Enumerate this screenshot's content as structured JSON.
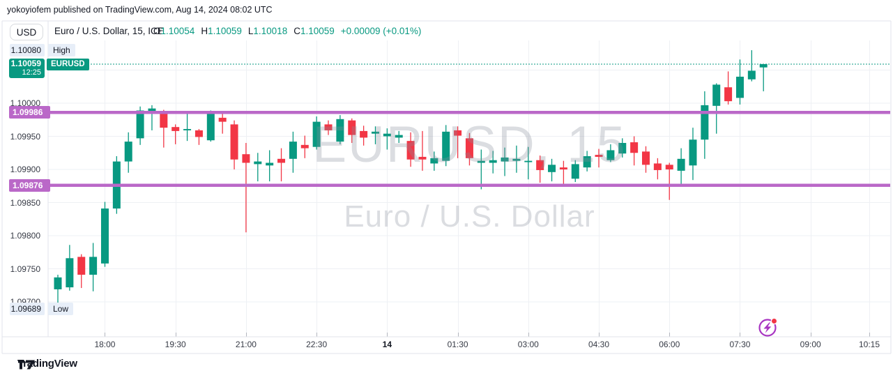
{
  "published_bar": {
    "text": "yokoyiofem published on TradingView.com, Aug 14, 2024 08:02 UTC"
  },
  "symbol_bar": {
    "currency_button": "USD",
    "title": "Euro / U.S. Dollar, 15, ICE",
    "ohlc_items": [
      {
        "label": "O",
        "value": "1.10054"
      },
      {
        "label": "H",
        "value": "1.10059"
      },
      {
        "label": "L",
        "value": "1.10018"
      },
      {
        "label": "C",
        "value": "1.10059"
      }
    ],
    "change": "+0.00009 (+0.01%)"
  },
  "watermark": {
    "line1": "EURUSD, 15",
    "line2": "Euro / U.S. Dollar"
  },
  "overlays": {
    "high_label": {
      "price_text": "1.10080",
      "tag": "High",
      "price": 1.1008
    },
    "low_label": {
      "price_text": "1.09689",
      "tag": "Low",
      "price": 1.09689
    },
    "current": {
      "price_text": "1.10059",
      "countdown": "12:25",
      "symbol_tag": "EURUSD",
      "price": 1.10059
    },
    "levels": [
      {
        "text": "1.09986",
        "price": 1.09986
      },
      {
        "text": "1.09876",
        "price": 1.09876
      }
    ]
  },
  "price_axis": {
    "labels": [
      {
        "text": "1.10000",
        "price": 1.1
      },
      {
        "text": "1.09950",
        "price": 1.0995
      },
      {
        "text": "1.09900",
        "price": 1.099
      },
      {
        "text": "1.09850",
        "price": 1.0985
      },
      {
        "text": "1.09800",
        "price": 1.098
      },
      {
        "text": "1.09750",
        "price": 1.0975
      },
      {
        "text": "1.09700",
        "price": 1.097
      }
    ],
    "unlabeled_gridlines": [
      1.1005
    ]
  },
  "time_axis": {
    "labels": [
      {
        "text": "18:00",
        "minutes": 0,
        "emphasis": false
      },
      {
        "text": "19:30",
        "minutes": 90,
        "emphasis": false
      },
      {
        "text": "21:00",
        "minutes": 180,
        "emphasis": false
      },
      {
        "text": "22:30",
        "minutes": 270,
        "emphasis": false
      },
      {
        "text": "14",
        "minutes": 360,
        "emphasis": true
      },
      {
        "text": "01:30",
        "minutes": 450,
        "emphasis": false
      },
      {
        "text": "03:00",
        "minutes": 540,
        "emphasis": false
      },
      {
        "text": "04:30",
        "minutes": 630,
        "emphasis": false
      },
      {
        "text": "06:00",
        "minutes": 720,
        "emphasis": false
      },
      {
        "text": "07:30",
        "minutes": 810,
        "emphasis": false
      },
      {
        "text": "09:00",
        "minutes": 900,
        "emphasis": false
      },
      {
        "text": "10:15",
        "minutes": 975,
        "emphasis": false
      }
    ]
  },
  "footer": {
    "brand": "TradingView"
  },
  "icons": {
    "flash": "flash-lightning-notification"
  },
  "colors": {
    "up": "#089981",
    "down": "#f23645",
    "level": "#ba68c8",
    "grid": "#eef0f4",
    "border": "#e0e3eb",
    "tick": "#b2b5be",
    "axis_text": "#363a45",
    "flash_ring": "#a835c2",
    "flash_dot": "#f23645"
  },
  "chart_data": {
    "type": "candlestick",
    "symbol": "EURUSD",
    "interval_minutes": 15,
    "session_high": 1.1008,
    "session_low": 1.09689,
    "last_price": 1.10059,
    "horizontal_levels": [
      1.09986,
      1.09876
    ],
    "ylim": [
      1.0965,
      1.1011
    ],
    "candles": [
      {
        "t": "17:00",
        "o": 1.09719,
        "h": 1.09741,
        "l": 1.0969,
        "c": 1.09737
      },
      {
        "t": "17:15",
        "o": 1.09722,
        "h": 1.09786,
        "l": 1.09717,
        "c": 1.09766
      },
      {
        "t": "17:30",
        "o": 1.09768,
        "h": 1.09772,
        "l": 1.09721,
        "c": 1.09741
      },
      {
        "t": "17:45",
        "o": 1.09741,
        "h": 1.09789,
        "l": 1.09716,
        "c": 1.09768
      },
      {
        "t": "18:00",
        "o": 1.09758,
        "h": 1.09851,
        "l": 1.09753,
        "c": 1.09841
      },
      {
        "t": "18:15",
        "o": 1.09841,
        "h": 1.0992,
        "l": 1.09833,
        "c": 1.09912
      },
      {
        "t": "18:30",
        "o": 1.09912,
        "h": 1.09956,
        "l": 1.09895,
        "c": 1.09942
      },
      {
        "t": "18:45",
        "o": 1.09947,
        "h": 1.09995,
        "l": 1.09937,
        "c": 1.09989
      },
      {
        "t": "19:00",
        "o": 1.09986,
        "h": 1.09997,
        "l": 1.09959,
        "c": 1.09992
      },
      {
        "t": "19:15",
        "o": 1.09988,
        "h": 1.0999,
        "l": 1.09933,
        "c": 1.09963
      },
      {
        "t": "19:30",
        "o": 1.09964,
        "h": 1.09968,
        "l": 1.09938,
        "c": 1.09958
      },
      {
        "t": "19:45",
        "o": 1.09959,
        "h": 1.09985,
        "l": 1.09943,
        "c": 1.09961
      },
      {
        "t": "20:00",
        "o": 1.09959,
        "h": 1.09961,
        "l": 1.09937,
        "c": 1.09949
      },
      {
        "t": "20:15",
        "o": 1.09944,
        "h": 1.09989,
        "l": 1.09942,
        "c": 1.09984
      },
      {
        "t": "20:30",
        "o": 1.09978,
        "h": 1.09986,
        "l": 1.09954,
        "c": 1.09972
      },
      {
        "t": "20:45",
        "o": 1.09968,
        "h": 1.09974,
        "l": 1.099,
        "c": 1.09915
      },
      {
        "t": "21:00",
        "o": 1.09923,
        "h": 1.0994,
        "l": 1.09805,
        "c": 1.0991
      },
      {
        "t": "21:15",
        "o": 1.09908,
        "h": 1.09925,
        "l": 1.09882,
        "c": 1.09912
      },
      {
        "t": "21:30",
        "o": 1.09906,
        "h": 1.09929,
        "l": 1.09882,
        "c": 1.0991
      },
      {
        "t": "21:45",
        "o": 1.09916,
        "h": 1.09932,
        "l": 1.09882,
        "c": 1.0991
      },
      {
        "t": "22:00",
        "o": 1.09916,
        "h": 1.09957,
        "l": 1.09895,
        "c": 1.09942
      },
      {
        "t": "22:15",
        "o": 1.09937,
        "h": 1.09951,
        "l": 1.09917,
        "c": 1.09932
      },
      {
        "t": "22:30",
        "o": 1.09934,
        "h": 1.0998,
        "l": 1.0993,
        "c": 1.09972
      },
      {
        "t": "22:45",
        "o": 1.09968,
        "h": 1.09974,
        "l": 1.09952,
        "c": 1.09959
      },
      {
        "t": "23:00",
        "o": 1.09942,
        "h": 1.09982,
        "l": 1.09938,
        "c": 1.09976
      },
      {
        "t": "23:15",
        "o": 1.09974,
        "h": 1.09977,
        "l": 1.0994,
        "c": 1.09952
      },
      {
        "t": "23:30",
        "o": 1.09958,
        "h": 1.09966,
        "l": 1.09936,
        "c": 1.09948
      },
      {
        "t": "23:45",
        "o": 1.09954,
        "h": 1.09965,
        "l": 1.09938,
        "c": 1.09957
      },
      {
        "t": "00:00",
        "o": 1.0995,
        "h": 1.09962,
        "l": 1.0993,
        "c": 1.09954
      },
      {
        "t": "00:15",
        "o": 1.09948,
        "h": 1.09958,
        "l": 1.0994,
        "c": 1.09952
      },
      {
        "t": "00:30",
        "o": 1.09943,
        "h": 1.09956,
        "l": 1.09904,
        "c": 1.09915
      },
      {
        "t": "00:45",
        "o": 1.09919,
        "h": 1.09958,
        "l": 1.09898,
        "c": 1.09915
      },
      {
        "t": "01:00",
        "o": 1.09909,
        "h": 1.09927,
        "l": 1.09898,
        "c": 1.09917
      },
      {
        "t": "01:15",
        "o": 1.09913,
        "h": 1.09967,
        "l": 1.09905,
        "c": 1.09957
      },
      {
        "t": "01:30",
        "o": 1.09959,
        "h": 1.09965,
        "l": 1.09917,
        "c": 1.09951
      },
      {
        "t": "01:45",
        "o": 1.09947,
        "h": 1.09955,
        "l": 1.09906,
        "c": 1.09917
      },
      {
        "t": "02:00",
        "o": 1.0991,
        "h": 1.0993,
        "l": 1.0987,
        "c": 1.09913
      },
      {
        "t": "02:15",
        "o": 1.0991,
        "h": 1.09928,
        "l": 1.09894,
        "c": 1.09914
      },
      {
        "t": "02:30",
        "o": 1.09912,
        "h": 1.09933,
        "l": 1.0989,
        "c": 1.09918
      },
      {
        "t": "02:45",
        "o": 1.09913,
        "h": 1.09936,
        "l": 1.09895,
        "c": 1.09916
      },
      {
        "t": "03:00",
        "o": 1.09911,
        "h": 1.09934,
        "l": 1.09885,
        "c": 1.09913
      },
      {
        "t": "03:15",
        "o": 1.09914,
        "h": 1.09921,
        "l": 1.0988,
        "c": 1.09899
      },
      {
        "t": "03:30",
        "o": 1.09896,
        "h": 1.09916,
        "l": 1.09882,
        "c": 1.09907
      },
      {
        "t": "03:45",
        "o": 1.09903,
        "h": 1.09913,
        "l": 1.09876,
        "c": 1.099
      },
      {
        "t": "04:00",
        "o": 1.09886,
        "h": 1.09914,
        "l": 1.09881,
        "c": 1.09908
      },
      {
        "t": "04:15",
        "o": 1.09903,
        "h": 1.09928,
        "l": 1.09897,
        "c": 1.0992
      },
      {
        "t": "04:30",
        "o": 1.09922,
        "h": 1.09931,
        "l": 1.09903,
        "c": 1.09919
      },
      {
        "t": "04:45",
        "o": 1.09914,
        "h": 1.09938,
        "l": 1.09911,
        "c": 1.09929
      },
      {
        "t": "05:00",
        "o": 1.09924,
        "h": 1.09947,
        "l": 1.09918,
        "c": 1.0994
      },
      {
        "t": "05:15",
        "o": 1.09941,
        "h": 1.0995,
        "l": 1.09906,
        "c": 1.09925
      },
      {
        "t": "05:30",
        "o": 1.09927,
        "h": 1.09935,
        "l": 1.09895,
        "c": 1.09907
      },
      {
        "t": "05:45",
        "o": 1.09909,
        "h": 1.09917,
        "l": 1.09885,
        "c": 1.09899
      },
      {
        "t": "06:00",
        "o": 1.09907,
        "h": 1.0991,
        "l": 1.09854,
        "c": 1.099
      },
      {
        "t": "06:15",
        "o": 1.09898,
        "h": 1.09932,
        "l": 1.09876,
        "c": 1.09916
      },
      {
        "t": "06:30",
        "o": 1.09906,
        "h": 1.09963,
        "l": 1.09884,
        "c": 1.09945
      },
      {
        "t": "06:45",
        "o": 1.09945,
        "h": 1.10018,
        "l": 1.09916,
        "c": 1.09997
      },
      {
        "t": "07:00",
        "o": 1.09996,
        "h": 1.1003,
        "l": 1.09954,
        "c": 1.10028
      },
      {
        "t": "07:15",
        "o": 1.10024,
        "h": 1.10048,
        "l": 1.09998,
        "c": 1.10003
      },
      {
        "t": "07:30",
        "o": 1.10008,
        "h": 1.10066,
        "l": 1.09998,
        "c": 1.1004
      },
      {
        "t": "07:45",
        "o": 1.10036,
        "h": 1.1008,
        "l": 1.10033,
        "c": 1.10049
      },
      {
        "t": "08:00",
        "o": 1.10054,
        "h": 1.10059,
        "l": 1.10018,
        "c": 1.10059
      }
    ]
  }
}
